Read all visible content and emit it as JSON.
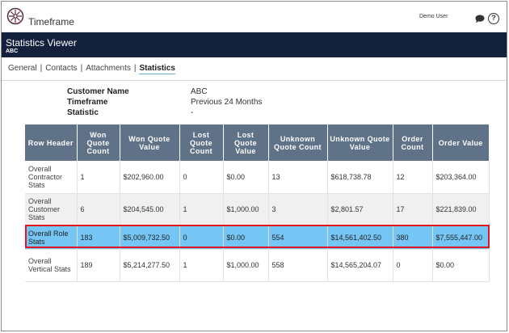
{
  "app": {
    "title": "Timeframe",
    "user": "Demo User",
    "logo_icon": "compass-logo-icon",
    "chat_icon": "chat-bubble-icon",
    "help_icon": "help-circle-icon",
    "help_glyph": "?"
  },
  "header": {
    "title": "Statistics Viewer",
    "subtitle": "ABC"
  },
  "tabs": [
    {
      "label": "General"
    },
    {
      "label": "Contacts"
    },
    {
      "label": "Attachments"
    },
    {
      "label": "Statistics",
      "active": true
    }
  ],
  "tab_separator": "|",
  "summary": {
    "customer_label": "Customer Name",
    "customer_value": "ABC",
    "timeframe_label": "Timeframe",
    "timeframe_value": "Previous 24 Months",
    "statistic_label": "Statistic",
    "statistic_value": "-"
  },
  "table": {
    "columns": [
      "Row Header",
      "Won Quote Count",
      "Won Quote Value",
      "Lost Quote Count",
      "Lost Quote Value",
      "Unknown Quote Count",
      "Unknown Quote Value",
      "Order Count",
      "Order Value"
    ],
    "rows": [
      [
        "Overall Contractor Stats",
        "1",
        "$202,960.00",
        "0",
        "$0.00",
        "13",
        "$618,738.78",
        "12",
        "$203,364.00"
      ],
      [
        "Overall Customer Stats",
        "6",
        "$204,545.00",
        "1",
        "$1,000.00",
        "3",
        "$2,801.57",
        "17",
        "$221,839.00"
      ],
      [
        "Overall Role Stats",
        "183",
        "$5,009,732.50",
        "0",
        "$0.00",
        "554",
        "$14,561,402.50",
        "380",
        "$7,555,447.00"
      ],
      [
        "Overall Vertical Stats",
        "189",
        "$5,214,277.50",
        "1",
        "$1,000.00",
        "558",
        "$14,565,204.07",
        "0",
        "$0.00"
      ]
    ],
    "highlighted_row": 2
  },
  "colors": {
    "header_bar": "#14213d",
    "table_header": "#5f7287",
    "highlight_row": "#75c6f5",
    "highlight_border": "#e3161f"
  }
}
